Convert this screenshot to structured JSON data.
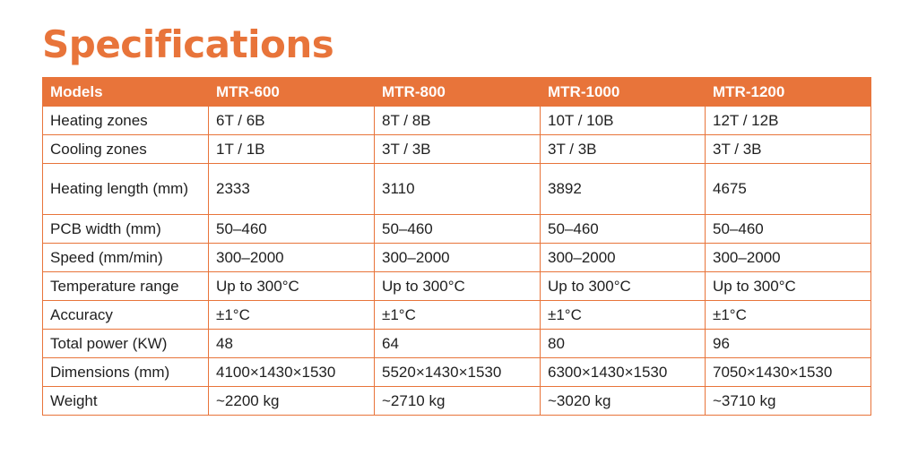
{
  "title": "Specifications",
  "colors": {
    "accent": "#e8743a",
    "header_text": "#ffffff",
    "body_text": "#1f1f1f"
  },
  "table": {
    "headers": [
      "Models",
      "MTR-600",
      "MTR-800",
      "MTR-1000",
      "MTR-1200"
    ],
    "rows": [
      {
        "label": "Heating zones",
        "values": [
          "6T / 6B",
          "8T / 8B",
          "10T / 10B",
          "12T / 12B"
        ]
      },
      {
        "label": "Cooling zones",
        "values": [
          "1T / 1B",
          "3T / 3B",
          "3T / 3B",
          "3T / 3B"
        ]
      },
      {
        "label": "Heating length (mm)",
        "values": [
          "2333",
          "3110",
          "3892",
          "4675"
        ]
      },
      {
        "label": "PCB width (mm)",
        "values": [
          "50–460",
          "50–460",
          "50–460",
          "50–460"
        ]
      },
      {
        "label": "Speed (mm/min)",
        "values": [
          "300–2000",
          "300–2000",
          "300–2000",
          "300–2000"
        ]
      },
      {
        "label": "Temperature range",
        "values": [
          "Up to 300°C",
          "Up to 300°C",
          "Up to 300°C",
          "Up to 300°C"
        ]
      },
      {
        "label": "Accuracy",
        "values": [
          "±1°C",
          "±1°C",
          "±1°C",
          "±1°C"
        ]
      },
      {
        "label": "Total power (KW)",
        "values": [
          "48",
          "64",
          "80",
          "96"
        ]
      },
      {
        "label": "Dimensions (mm)",
        "values": [
          "4100×1430×1530",
          "5520×1430×1530",
          "6300×1430×1530",
          "7050×1430×1530"
        ]
      },
      {
        "label": "Weight",
        "values": [
          "~2200 kg",
          "~2710 kg",
          "~3020 kg",
          "~3710 kg"
        ]
      }
    ]
  }
}
